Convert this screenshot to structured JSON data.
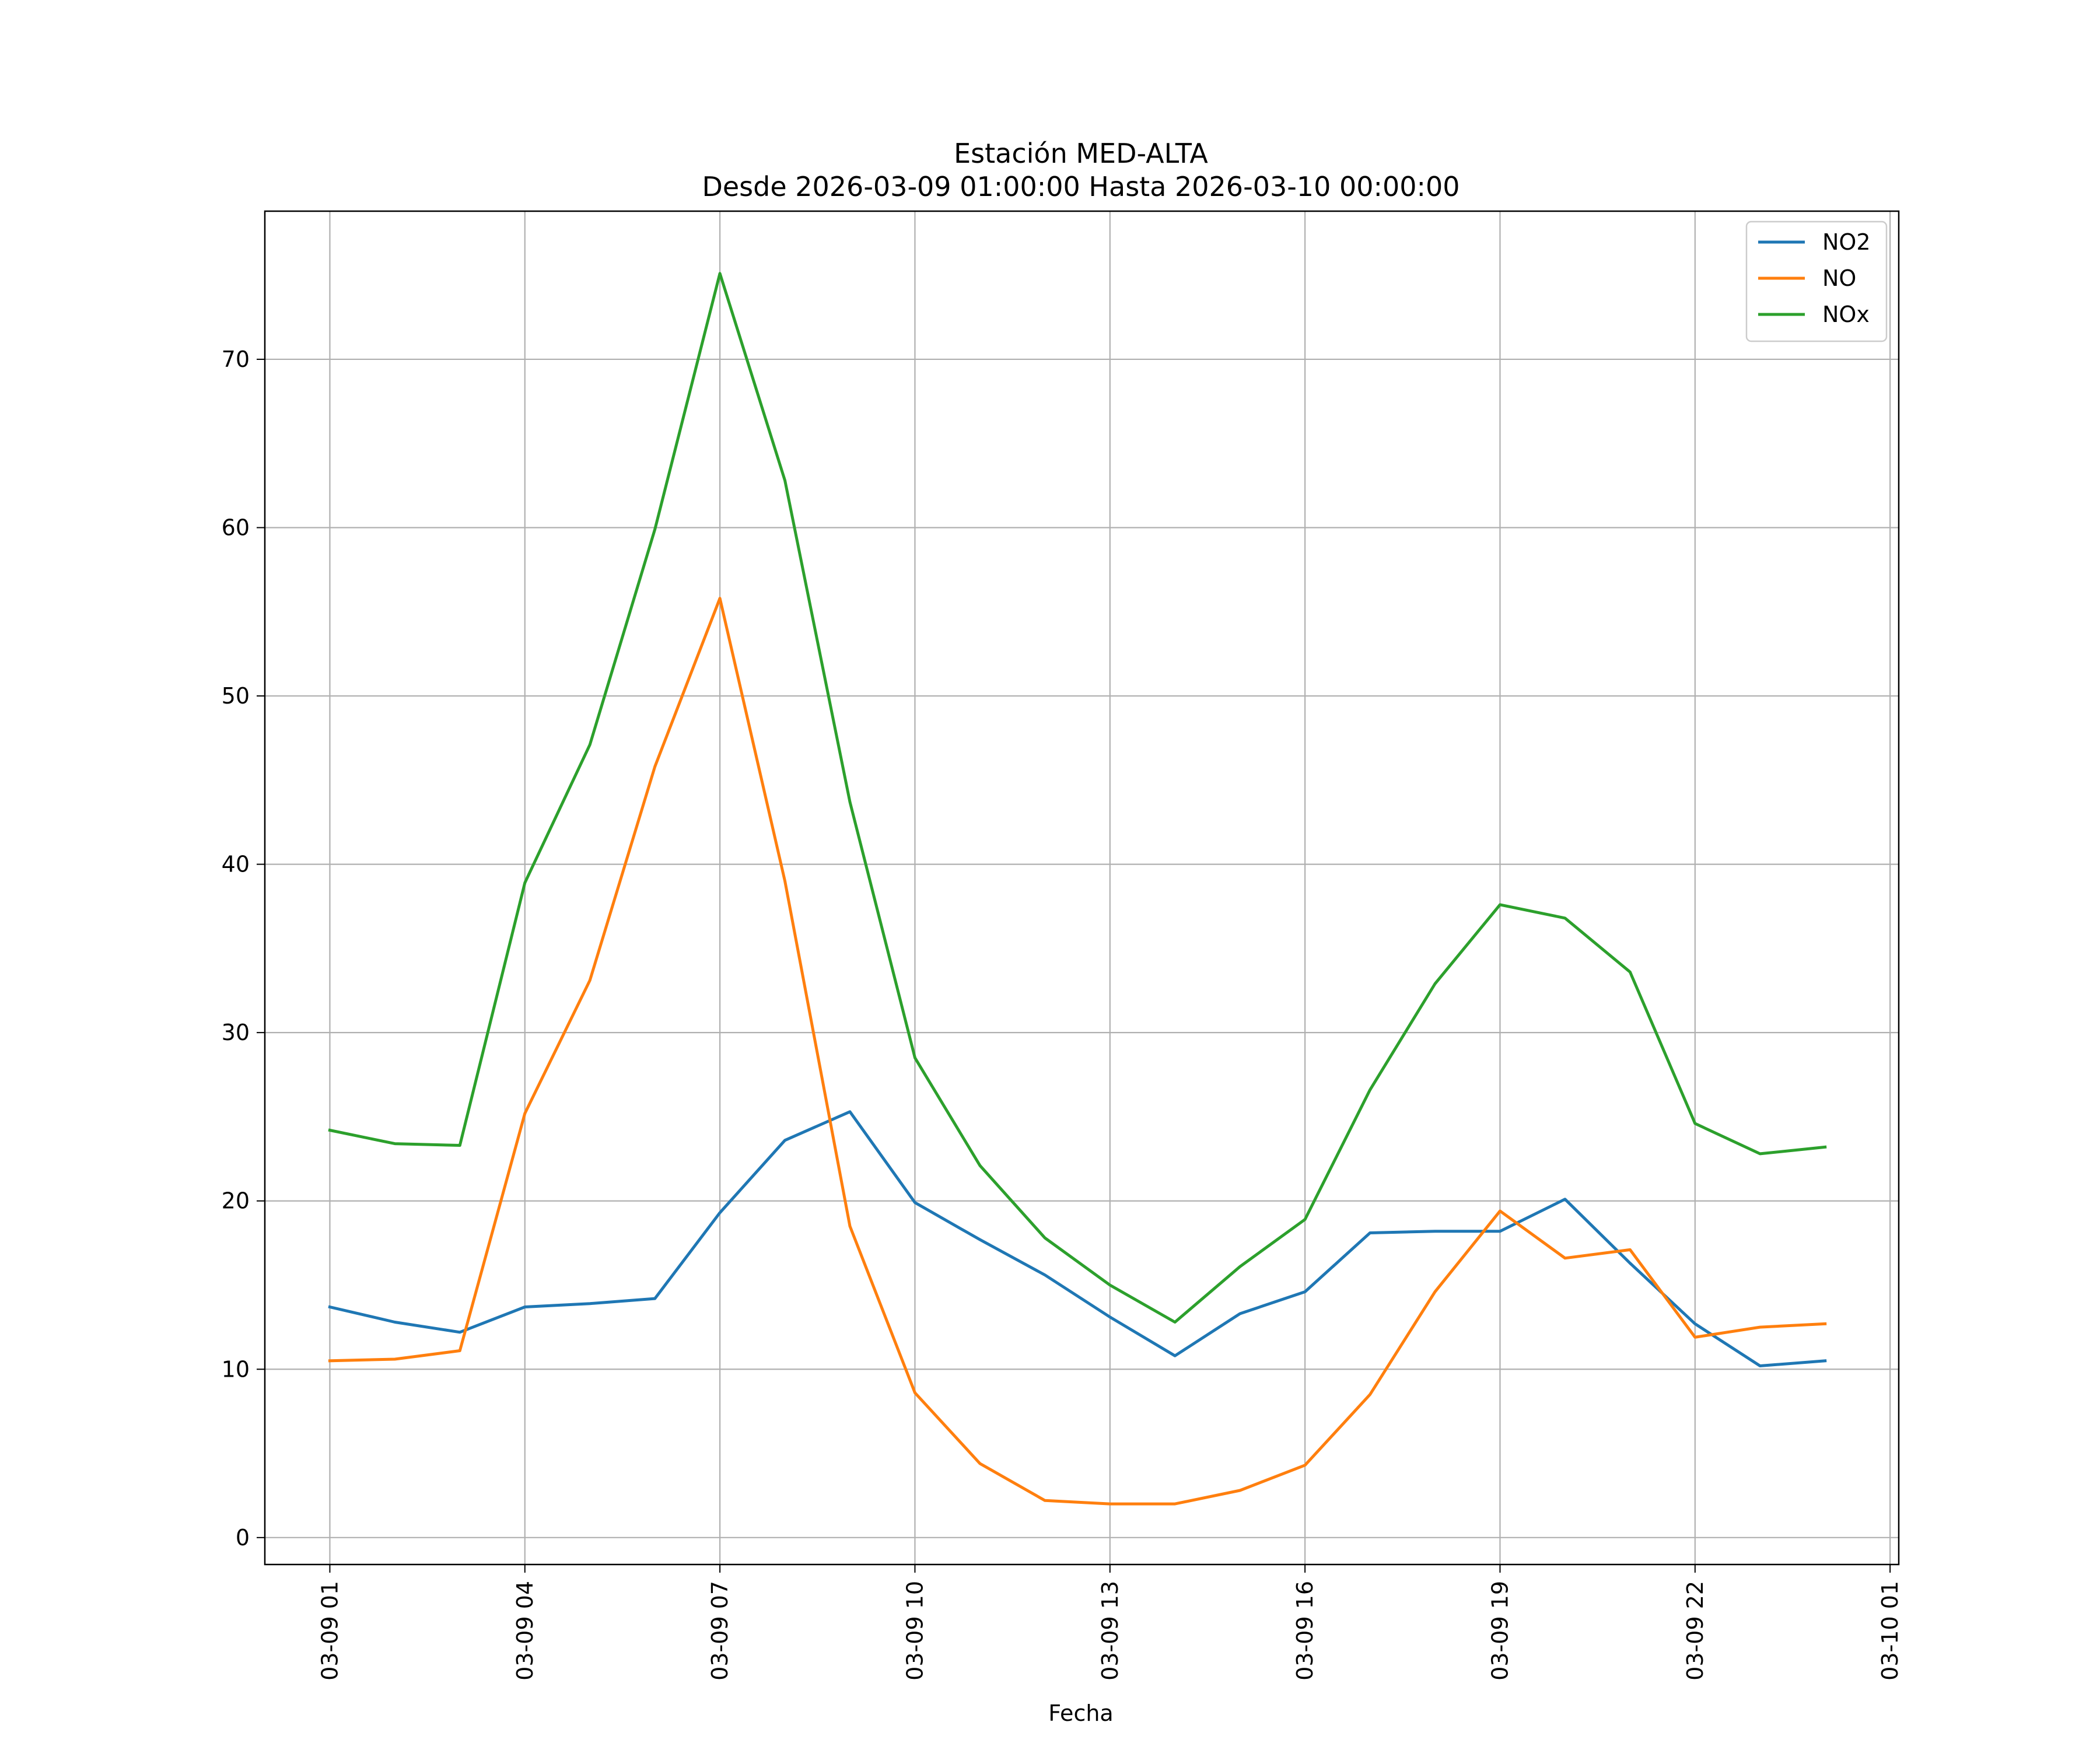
{
  "chart_data": {
    "type": "line",
    "title": "Estación MED-ALTA",
    "subtitle": "Desde 2026-03-09 01:00:00 Hasta 2026-03-10 00:00:00",
    "xlabel": "Fecha",
    "ylabel": "",
    "x": [
      "2026-03-09 01:00",
      "2026-03-09 02:00",
      "2026-03-09 03:00",
      "2026-03-09 04:00",
      "2026-03-09 05:00",
      "2026-03-09 06:00",
      "2026-03-09 07:00",
      "2026-03-09 08:00",
      "2026-03-09 09:00",
      "2026-03-09 10:00",
      "2026-03-09 11:00",
      "2026-03-09 12:00",
      "2026-03-09 13:00",
      "2026-03-09 14:00",
      "2026-03-09 15:00",
      "2026-03-09 16:00",
      "2026-03-09 17:00",
      "2026-03-09 18:00",
      "2026-03-09 19:00",
      "2026-03-09 20:00",
      "2026-03-09 21:00",
      "2026-03-09 22:00",
      "2026-03-09 23:00",
      "2026-03-10 00:00"
    ],
    "xlim": [
      "2026-03-09 00:00:00",
      "2026-03-10 01:08:00"
    ],
    "ylim": [
      -1.6,
      78.8
    ],
    "x_ticks": [
      {
        "value": "2026-03-09 01:00",
        "label": "03-09 01"
      },
      {
        "value": "2026-03-09 04:00",
        "label": "03-09 04"
      },
      {
        "value": "2026-03-09 07:00",
        "label": "03-09 07"
      },
      {
        "value": "2026-03-09 10:00",
        "label": "03-09 10"
      },
      {
        "value": "2026-03-09 13:00",
        "label": "03-09 13"
      },
      {
        "value": "2026-03-09 16:00",
        "label": "03-09 16"
      },
      {
        "value": "2026-03-09 19:00",
        "label": "03-09 19"
      },
      {
        "value": "2026-03-09 22:00",
        "label": "03-09 22"
      },
      {
        "value": "2026-03-10 01:00",
        "label": "03-10 01"
      }
    ],
    "y_ticks": [
      0,
      10,
      20,
      30,
      40,
      50,
      60,
      70
    ],
    "grid": true,
    "legend_position": "top-right",
    "series": [
      {
        "name": "NO2",
        "color": "#1f77b4",
        "values": [
          13.7,
          12.8,
          12.2,
          13.7,
          13.9,
          14.2,
          19.3,
          23.6,
          25.3,
          19.9,
          17.7,
          15.6,
          13.1,
          10.8,
          13.3,
          14.6,
          18.1,
          18.2,
          18.2,
          20.1,
          16.3,
          12.7,
          10.2,
          10.5
        ]
      },
      {
        "name": "NO",
        "color": "#ff7f0e",
        "values": [
          10.5,
          10.6,
          11.1,
          25.2,
          33.1,
          45.8,
          55.8,
          39.0,
          18.5,
          8.6,
          4.4,
          2.2,
          2.0,
          2.0,
          2.8,
          4.3,
          8.5,
          14.6,
          19.4,
          16.6,
          17.1,
          11.9,
          12.5,
          12.7
        ]
      },
      {
        "name": "NOx",
        "color": "#2ca02c",
        "values": [
          24.2,
          23.4,
          23.3,
          38.9,
          47.1,
          59.9,
          75.1,
          62.8,
          43.7,
          28.5,
          22.1,
          17.8,
          15.0,
          12.8,
          16.1,
          18.9,
          26.6,
          32.9,
          37.6,
          36.8,
          33.6,
          24.6,
          22.8,
          23.2
        ]
      }
    ]
  }
}
